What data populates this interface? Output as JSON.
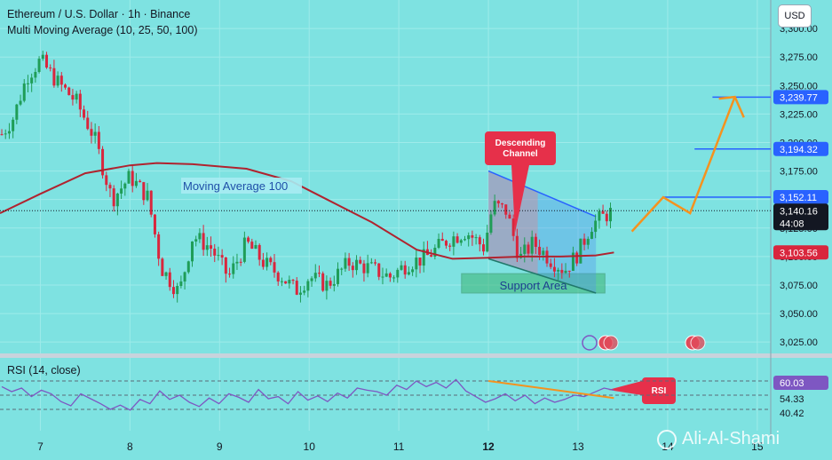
{
  "header": {
    "title": "Ethereum / U.S. Dollar · 1h · Binance",
    "indicator": "Multi Moving Average (10, 25, 50, 100)",
    "rsi_label": "RSI (14, close)"
  },
  "currency_button": "USD",
  "watermark": "Ali-Al-Shami",
  "colors": {
    "background": "#7ee2e1",
    "candle_up": "#1f9d57",
    "candle_down": "#d9263d",
    "ma": "#b0232f",
    "level": "#2962ff",
    "projection": "#f5921e",
    "rsi": "#7e57c2",
    "callout": "#e6304a",
    "support_fill": "#3cb371",
    "channel_fill": "#4f8ff0",
    "pill_blue": "#2962ff",
    "pill_red": "#d9263d",
    "pill_black": "#131722"
  },
  "annotations": {
    "ma_label": "Moving Average 100",
    "descending_channel": "Descending\nChannel",
    "support_area": "Support Area",
    "rsi_callout": "RSI"
  },
  "chart_data": {
    "type": "candlestick",
    "price_axis": {
      "ticks": [
        3300,
        3275,
        3250,
        3225,
        3200,
        3175,
        3150,
        3125,
        3100,
        3075,
        3050,
        3025
      ],
      "tick_labels": [
        "3,300.00",
        "3,275.00",
        "3,250.00",
        "3,225.00",
        "3,200.00",
        "3,175.00",
        "3,150.00",
        "3,125.00",
        "3,100.00",
        "3,075.00",
        "3,050.00",
        "3,025.00"
      ],
      "range": [
        3015,
        3325
      ]
    },
    "x_axis": {
      "labels": [
        "7",
        "8",
        "9",
        "10",
        "11",
        "12",
        "13",
        "14",
        "15"
      ],
      "bold": [
        "12"
      ],
      "range": [
        6.55,
        15.15
      ]
    },
    "last_price": {
      "value": "3,140.16",
      "countdown": "44:08"
    },
    "ma100_value": "3,103.56",
    "levels": [
      {
        "value": 3239.77,
        "label": "3,239.77",
        "from_day": 14.5
      },
      {
        "value": 3194.32,
        "label": "3,194.32",
        "from_day": 14.3
      },
      {
        "value": 3152.11,
        "label": "3,152.11",
        "from_day": 13.95
      }
    ],
    "ma100": [
      [
        6.55,
        3138
      ],
      [
        7.0,
        3155
      ],
      [
        7.5,
        3173
      ],
      [
        8.0,
        3180
      ],
      [
        8.3,
        3182
      ],
      [
        8.7,
        3181
      ],
      [
        9.3,
        3177
      ],
      [
        9.8,
        3166
      ],
      [
        10.2,
        3150
      ],
      [
        10.7,
        3130
      ],
      [
        11.2,
        3106
      ],
      [
        11.6,
        3098
      ],
      [
        12.0,
        3099
      ],
      [
        12.4,
        3100
      ],
      [
        12.8,
        3100
      ],
      [
        13.2,
        3101
      ],
      [
        13.4,
        3103.56
      ]
    ],
    "close_path": [
      [
        6.55,
        3205
      ],
      [
        6.7,
        3222
      ],
      [
        6.85,
        3258
      ],
      [
        7.0,
        3272
      ],
      [
        7.2,
        3252
      ],
      [
        7.4,
        3236
      ],
      [
        7.6,
        3205
      ],
      [
        7.8,
        3150
      ],
      [
        8.0,
        3170
      ],
      [
        8.2,
        3152
      ],
      [
        8.35,
        3090
      ],
      [
        8.55,
        3068
      ],
      [
        8.7,
        3118
      ],
      [
        8.9,
        3108
      ],
      [
        9.1,
        3082
      ],
      [
        9.3,
        3112
      ],
      [
        9.5,
        3094
      ],
      [
        9.7,
        3082
      ],
      [
        9.85,
        3070
      ],
      [
        10.0,
        3082
      ],
      [
        10.2,
        3075
      ],
      [
        10.45,
        3095
      ],
      [
        10.7,
        3089
      ],
      [
        10.9,
        3082
      ],
      [
        11.1,
        3094
      ],
      [
        11.3,
        3099
      ],
      [
        11.55,
        3115
      ],
      [
        11.75,
        3122
      ],
      [
        11.95,
        3108
      ],
      [
        12.05,
        3145
      ],
      [
        12.2,
        3140
      ],
      [
        12.35,
        3098
      ],
      [
        12.5,
        3112
      ],
      [
        12.7,
        3097
      ],
      [
        12.85,
        3088
      ],
      [
        13.0,
        3103
      ],
      [
        13.15,
        3128
      ],
      [
        13.3,
        3136
      ],
      [
        13.4,
        3140.16
      ]
    ],
    "projection": [
      [
        13.6,
        3122
      ],
      [
        13.95,
        3152
      ],
      [
        14.25,
        3138
      ],
      [
        14.75,
        3240
      ],
      [
        14.85,
        3222
      ]
    ],
    "descending_channel": {
      "upper": [
        [
          12.0,
          3175
        ],
        [
          13.2,
          3135
        ]
      ],
      "lower": [
        [
          12.0,
          3098
        ],
        [
          13.2,
          3068
        ]
      ]
    },
    "support_area": {
      "x": [
        11.7,
        13.3
      ],
      "y": [
        3068,
        3085
      ]
    },
    "rsi": {
      "ticks": [
        "60.03",
        "54.33",
        "40.42"
      ],
      "levels": [
        70,
        50,
        30
      ],
      "values": [
        62,
        55,
        60,
        48,
        57,
        52,
        41,
        35,
        52,
        45,
        38,
        30,
        36,
        29,
        44,
        38,
        56,
        44,
        50,
        40,
        34,
        46,
        38,
        52,
        47,
        40,
        58,
        45,
        48,
        38,
        55,
        43,
        49,
        41,
        53,
        46,
        60,
        57,
        55,
        50,
        64,
        58,
        70,
        62,
        68,
        60,
        72,
        56,
        48,
        40,
        45,
        52,
        42,
        50,
        38,
        46,
        40,
        44,
        50,
        48,
        54,
        60,
        57
      ],
      "divergence_line": [
        [
          12.0,
          70
        ],
        [
          13.4,
          46
        ]
      ]
    }
  }
}
